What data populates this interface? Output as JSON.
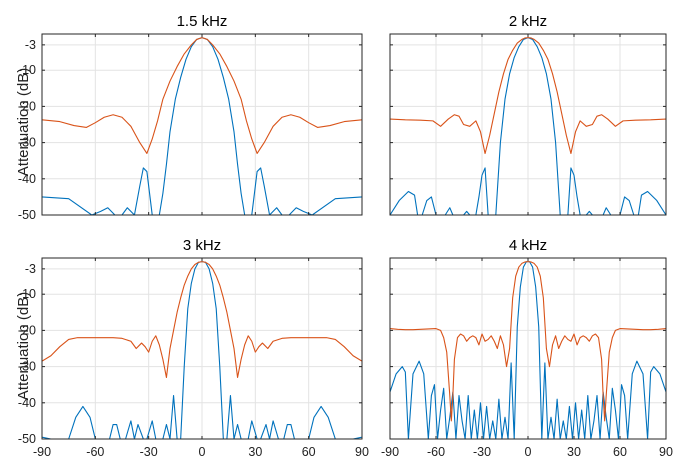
{
  "colors": {
    "series_blue": "#0072bd",
    "series_orange": "#d95319",
    "grid": "#e3e3e3",
    "axes": "#262626"
  },
  "figure": {
    "ylabel": "Attenuation (dB)"
  },
  "chart_data": [
    {
      "type": "line",
      "title": "1.5 kHz",
      "ylabel": "Attenuation (dB)",
      "xlim": [
        -90,
        90
      ],
      "ylim": [
        -50,
        0
      ],
      "xticks": [
        -90,
        -60,
        -30,
        0,
        30,
        60,
        90
      ],
      "yticks": [
        -3,
        -10,
        -20,
        -30,
        -40,
        -50
      ],
      "grid": true,
      "series": [
        {
          "color": "#0072bd",
          "x": [
            -90,
            -75,
            -62,
            -57,
            -53,
            -49,
            -45,
            -42,
            -38,
            -35,
            -33,
            -31,
            -28,
            -26,
            -24,
            -22,
            -20,
            -18,
            -15,
            -12,
            -9,
            -6,
            -3,
            0,
            3,
            6,
            9,
            12,
            15,
            18,
            20,
            22,
            24,
            26,
            28,
            31,
            33,
            35,
            38,
            42,
            45,
            49,
            53,
            57,
            62,
            75,
            90
          ],
          "y": [
            -45,
            -45.5,
            -50,
            -49,
            -48,
            -50,
            -50,
            -48,
            -50,
            -42,
            -37,
            -38,
            -50,
            -50,
            -50,
            -44,
            -36,
            -27,
            -18,
            -12,
            -7,
            -3.5,
            -1.5,
            -1,
            -1.5,
            -3.5,
            -7,
            -12,
            -18,
            -27,
            -36,
            -44,
            -50,
            -50,
            -50,
            -38,
            -37,
            -42,
            -50,
            -48,
            -50,
            -50,
            -48,
            -49,
            -50,
            -45.5,
            -45
          ]
        },
        {
          "color": "#d95319",
          "x": [
            -90,
            -80,
            -72,
            -65,
            -60,
            -55,
            -50,
            -45,
            -40,
            -35,
            -31,
            -28,
            -25,
            -22,
            -18,
            -14,
            -10,
            -6,
            -3,
            0,
            3,
            6,
            10,
            14,
            18,
            22,
            25,
            28,
            31,
            35,
            40,
            45,
            50,
            55,
            60,
            65,
            72,
            80,
            90
          ],
          "y": [
            -23.7,
            -24.2,
            -25.3,
            -25.8,
            -24.5,
            -23,
            -22.3,
            -23,
            -25.5,
            -30,
            -33,
            -29,
            -24,
            -18,
            -13,
            -9,
            -5.5,
            -3,
            -1.5,
            -1,
            -1.5,
            -3,
            -5.5,
            -9,
            -13,
            -18,
            -24,
            -29,
            -33,
            -30,
            -25.5,
            -23,
            -22.3,
            -23,
            -24.5,
            -25.8,
            -25.3,
            -24.2,
            -23.7
          ]
        }
      ]
    },
    {
      "type": "line",
      "title": "2 kHz",
      "xlim": [
        -90,
        90
      ],
      "ylim": [
        -50,
        0
      ],
      "xticks": [
        -90,
        -60,
        -30,
        0,
        30,
        60,
        90
      ],
      "yticks": [
        -3,
        -10,
        -20,
        -30,
        -40,
        -50
      ],
      "grid": true,
      "series": [
        {
          "color": "#0072bd",
          "x": [
            -90,
            -84,
            -78,
            -74,
            -72,
            -69,
            -66,
            -63,
            -60,
            -57,
            -54,
            -51,
            -49,
            -46,
            -42,
            -40,
            -38,
            -36,
            -34,
            -32,
            -30,
            -28,
            -26,
            -24,
            -21,
            -18,
            -15,
            -12,
            -9,
            -6,
            -3,
            0,
            3,
            6,
            9,
            12,
            15,
            18,
            21,
            24,
            26,
            28,
            30,
            32,
            34,
            36,
            38,
            40,
            42,
            46,
            49,
            51,
            54,
            57,
            60,
            63,
            66,
            69,
            72,
            74,
            78,
            84,
            90
          ],
          "y": [
            -50,
            -46,
            -43.5,
            -44.5,
            -50,
            -50,
            -46,
            -45,
            -50,
            -50,
            -50,
            -48,
            -50,
            -50,
            -50,
            -49,
            -50,
            -50,
            -50,
            -45,
            -39,
            -37,
            -50,
            -50,
            -50,
            -30,
            -18,
            -11,
            -6.5,
            -3.5,
            -1.5,
            -1,
            -1.5,
            -3.5,
            -6.5,
            -11,
            -18,
            -30,
            -50,
            -50,
            -50,
            -37,
            -39,
            -45,
            -50,
            -50,
            -50,
            -49,
            -50,
            -50,
            -50,
            -48,
            -50,
            -50,
            -50,
            -45,
            -46,
            -50,
            -50,
            -44.5,
            -43.5,
            -46,
            -50
          ]
        },
        {
          "color": "#d95319",
          "x": [
            -90,
            -80,
            -70,
            -62,
            -57,
            -52,
            -48,
            -45,
            -42,
            -38,
            -34,
            -31,
            -28,
            -25,
            -22,
            -19,
            -16,
            -13,
            -10,
            -7,
            -4,
            -2,
            0,
            2,
            4,
            7,
            10,
            13,
            16,
            19,
            22,
            25,
            28,
            31,
            34,
            38,
            42,
            45,
            48,
            52,
            57,
            62,
            70,
            80,
            90
          ],
          "y": [
            -23.5,
            -23.7,
            -23.8,
            -24,
            -25.5,
            -23.5,
            -22.3,
            -22.7,
            -25,
            -25.5,
            -24,
            -27,
            -33,
            -28,
            -22,
            -16,
            -11,
            -7,
            -4.5,
            -2.5,
            -1.5,
            -1.1,
            -1,
            -1.1,
            -1.5,
            -2.5,
            -4.5,
            -7,
            -11,
            -16,
            -22,
            -28,
            -33,
            -27,
            -24,
            -25.5,
            -25,
            -22.7,
            -22.3,
            -23.5,
            -25.5,
            -24,
            -23.8,
            -23.7,
            -23.5
          ]
        }
      ]
    },
    {
      "type": "line",
      "title": "3 kHz",
      "ylabel": "Attenuation (dB)",
      "xlim": [
        -90,
        90
      ],
      "ylim": [
        -50,
        0
      ],
      "xticks": [
        -90,
        -60,
        -30,
        0,
        30,
        60,
        90
      ],
      "yticks": [
        -3,
        -10,
        -20,
        -30,
        -40,
        -50
      ],
      "grid": true,
      "series": [
        {
          "color": "#0072bd",
          "x": [
            -90,
            -85,
            -80,
            -77,
            -75,
            -71,
            -67,
            -63,
            -60,
            -58,
            -52,
            -50,
            -48,
            -46,
            -43,
            -40,
            -38,
            -36,
            -33,
            -31,
            -28,
            -26,
            -24,
            -22,
            -20,
            -18,
            -16,
            -14,
            -12,
            -10,
            -8,
            -6,
            -4,
            -2,
            0,
            2,
            4,
            6,
            8,
            10,
            12,
            14,
            16,
            18,
            20,
            22,
            24,
            26,
            28,
            31,
            33,
            36,
            38,
            40,
            43,
            46,
            48,
            50,
            52,
            58,
            60,
            63,
            67,
            71,
            75,
            77,
            80,
            85,
            90
          ],
          "y": [
            -49.5,
            -50,
            -50,
            -50,
            -50,
            -44,
            -41,
            -44,
            -50,
            -50,
            -50,
            -46,
            -46,
            -50,
            -50,
            -45,
            -50,
            -46,
            -50,
            -50,
            -45,
            -50,
            -50,
            -50,
            -46,
            -50,
            -38,
            -50,
            -50,
            -30,
            -14,
            -7,
            -3,
            -1.2,
            -1,
            -1.2,
            -3,
            -7,
            -14,
            -30,
            -50,
            -50,
            -38,
            -50,
            -46,
            -50,
            -50,
            -50,
            -45,
            -50,
            -50,
            -46,
            -50,
            -45,
            -50,
            -50,
            -46,
            -46,
            -50,
            -50,
            -50,
            -44,
            -41,
            -44,
            -50,
            -50,
            -50,
            -50,
            -49.5
          ]
        },
        {
          "color": "#d95319",
          "x": [
            -90,
            -85,
            -80,
            -75,
            -70,
            -60,
            -50,
            -45,
            -40,
            -37,
            -34,
            -32,
            -30,
            -28,
            -26,
            -24,
            -22,
            -20,
            -18,
            -16,
            -14,
            -12,
            -10,
            -8,
            -6,
            -4,
            -2,
            0,
            2,
            4,
            6,
            8,
            10,
            12,
            14,
            16,
            18,
            20,
            22,
            24,
            26,
            28,
            30,
            32,
            34,
            37,
            40,
            45,
            50,
            60,
            70,
            75,
            80,
            85,
            90
          ],
          "y": [
            -28.5,
            -27,
            -24.5,
            -22.5,
            -22,
            -22,
            -22,
            -22.2,
            -23,
            -25,
            -23.5,
            -24.5,
            -26,
            -23,
            -21.5,
            -24,
            -28,
            -33,
            -25,
            -20,
            -15,
            -11,
            -7.5,
            -5,
            -3,
            -1.8,
            -1.2,
            -1,
            -1.2,
            -1.8,
            -3,
            -5,
            -7.5,
            -11,
            -15,
            -20,
            -25,
            -33,
            -28,
            -24,
            -21.5,
            -23,
            -26,
            -24.5,
            -23.5,
            -25,
            -23,
            -22.2,
            -22,
            -22,
            -22,
            -22.5,
            -24.5,
            -27,
            -28.5
          ]
        }
      ]
    },
    {
      "type": "line",
      "title": "4 kHz",
      "xlim": [
        -90,
        90
      ],
      "ylim": [
        -50,
        0
      ],
      "xticks": [
        -90,
        -60,
        -30,
        0,
        30,
        60,
        90
      ],
      "yticks": [
        -3,
        -10,
        -20,
        -30,
        -40,
        -50
      ],
      "grid": true,
      "series": [
        {
          "color": "#0072bd",
          "x": [
            -90,
            -86,
            -82,
            -80,
            -78,
            -75,
            -71,
            -68,
            -65,
            -63,
            -61,
            -59,
            -57,
            -55,
            -53,
            -51,
            -49,
            -47,
            -45,
            -43,
            -41,
            -39,
            -37,
            -35,
            -33,
            -31,
            -29,
            -27,
            -25,
            -23,
            -21,
            -19,
            -17,
            -15,
            -13,
            -11,
            -9,
            -7,
            -5,
            -3,
            -1,
            0,
            1,
            3,
            5,
            7,
            9,
            11,
            13,
            15,
            17,
            19,
            21,
            23,
            25,
            27,
            29,
            31,
            33,
            35,
            37,
            39,
            41,
            43,
            45,
            47,
            49,
            51,
            53,
            55,
            57,
            59,
            61,
            63,
            65,
            68,
            71,
            75,
            78,
            80,
            82,
            86,
            90
          ],
          "y": [
            -37,
            -32,
            -30,
            -31.5,
            -50,
            -32,
            -28.5,
            -32,
            -50,
            -38,
            -35,
            -50,
            -42,
            -36,
            -50,
            -44,
            -37,
            -50,
            -38,
            -45,
            -50,
            -38,
            -50,
            -42,
            -50,
            -40,
            -50,
            -41,
            -50,
            -45,
            -50,
            -39,
            -50,
            -44,
            -50,
            -29,
            -50,
            -19,
            -8,
            -2.5,
            -1,
            -1,
            -1,
            -2.5,
            -8,
            -19,
            -50,
            -29,
            -50,
            -44,
            -50,
            -39,
            -50,
            -45,
            -50,
            -41,
            -50,
            -40,
            -50,
            -42,
            -50,
            -38,
            -50,
            -45,
            -38,
            -50,
            -37,
            -44,
            -50,
            -36,
            -42,
            -50,
            -35,
            -38,
            -50,
            -32,
            -28.5,
            -32,
            -50,
            -31.5,
            -30,
            -32,
            -37
          ]
        },
        {
          "color": "#d95319",
          "x": [
            -90,
            -85,
            -80,
            -75,
            -70,
            -65,
            -60,
            -57,
            -55,
            -53,
            -51,
            -50,
            -49,
            -48,
            -46,
            -44,
            -42,
            -40,
            -38,
            -36,
            -34,
            -32,
            -30,
            -28,
            -26,
            -24,
            -22,
            -20,
            -18,
            -16,
            -14,
            -12,
            -10,
            -8,
            -6,
            -4,
            -2,
            0,
            2,
            4,
            6,
            8,
            10,
            12,
            14,
            16,
            18,
            20,
            22,
            24,
            26,
            28,
            30,
            32,
            34,
            36,
            38,
            40,
            42,
            44,
            46,
            48,
            49,
            50,
            51,
            53,
            55,
            57,
            60,
            65,
            70,
            75,
            80,
            85,
            90
          ],
          "y": [
            -19.5,
            -19.7,
            -19.8,
            -19.8,
            -19.7,
            -19.6,
            -19.5,
            -20,
            -22,
            -26,
            -38,
            -45,
            -38,
            -28,
            -22,
            -21,
            -21.5,
            -23,
            -22,
            -21.5,
            -22,
            -24,
            -21,
            -23,
            -22.5,
            -21.5,
            -23,
            -25,
            -21.5,
            -24,
            -30,
            -25,
            -11,
            -5,
            -2.5,
            -1.5,
            -1.1,
            -1,
            -1.1,
            -1.5,
            -2.5,
            -5,
            -11,
            -25,
            -30,
            -24,
            -21.5,
            -25,
            -23,
            -21.5,
            -22.5,
            -23,
            -21,
            -24,
            -22,
            -21.5,
            -22,
            -23,
            -21.5,
            -21,
            -22,
            -28,
            -38,
            -45,
            -38,
            -26,
            -22,
            -20,
            -19.5,
            -19.6,
            -19.7,
            -19.8,
            -19.8,
            -19.7,
            -19.5
          ]
        }
      ]
    }
  ]
}
